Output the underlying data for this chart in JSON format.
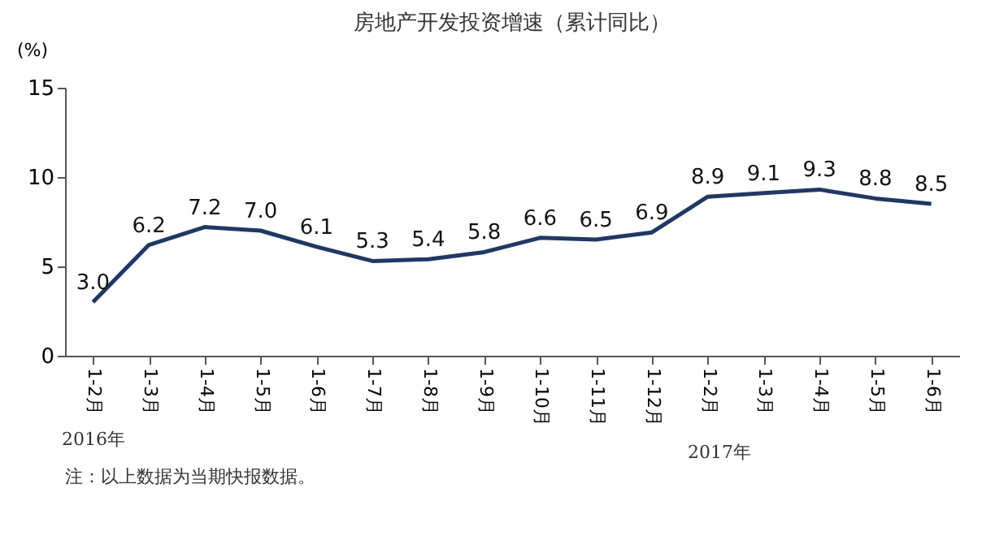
{
  "chart_data": {
    "type": "line",
    "title": "房地产开发投资增速（累计同比）",
    "ylabel": "(%)",
    "categories": [
      "1-2月",
      "1-3月",
      "1-4月",
      "1-5月",
      "1-6月",
      "1-7月",
      "1-8月",
      "1-9月",
      "1-10月",
      "1-11月",
      "1-12月",
      "1-2月",
      "1-3月",
      "1-4月",
      "1-5月",
      "1-6月"
    ],
    "series": [
      {
        "color": "#1f3864",
        "values": [
          3.0,
          6.2,
          7.2,
          7.0,
          6.1,
          5.3,
          5.4,
          5.8,
          6.6,
          6.5,
          6.9,
          8.9,
          9.1,
          9.3,
          8.8,
          8.5
        ],
        "value_labels": [
          "3.0",
          "6.2",
          "7.2",
          "7.0",
          "6.1",
          "5.3",
          "5.4",
          "5.8",
          "6.6",
          "6.5",
          "6.9",
          "8.9",
          "9.1",
          "9.3",
          "8.8",
          "8.5"
        ]
      }
    ],
    "ylim": [
      0,
      15
    ],
    "yticks": [
      0,
      5,
      10,
      15
    ],
    "grid": false,
    "line_style": "solid",
    "annotations": [
      "2016年",
      "2017年",
      "注：以上数据为当期快报数据。"
    ]
  }
}
